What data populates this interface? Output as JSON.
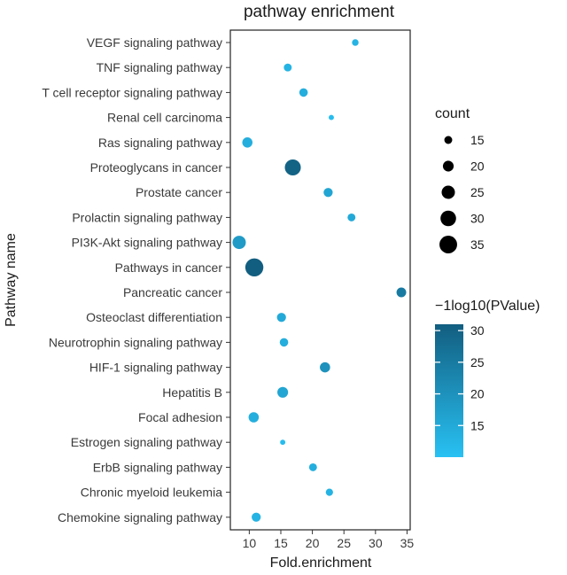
{
  "chart_data": {
    "type": "scatter",
    "title": "pathway enrichment",
    "xlabel": "Fold.enrichment",
    "ylabel": "Pathway name",
    "xlim": [
      7,
      35.5
    ],
    "xticks": [
      10,
      15,
      20,
      25,
      30,
      35
    ],
    "xtick_labels": [
      "10",
      "15",
      "20",
      "25",
      "30",
      "35"
    ],
    "points": [
      {
        "pathway": "VEGF signaling pathway",
        "fold_enrichment": 26.8,
        "count": 13,
        "neglog10_p": 13
      },
      {
        "pathway": "TNF signaling pathway",
        "fold_enrichment": 16.1,
        "count": 15,
        "neglog10_p": 13
      },
      {
        "pathway": "T cell receptor signaling pathway",
        "fold_enrichment": 18.6,
        "count": 16,
        "neglog10_p": 14
      },
      {
        "pathway": "Renal cell carcinoma",
        "fold_enrichment": 23.0,
        "count": 11,
        "neglog10_p": 11
      },
      {
        "pathway": "Ras signaling pathway",
        "fold_enrichment": 9.7,
        "count": 19,
        "neglog10_p": 14
      },
      {
        "pathway": "Proteoglycans in cancer",
        "fold_enrichment": 16.9,
        "count": 31,
        "neglog10_p": 30
      },
      {
        "pathway": "Prostate cancer",
        "fold_enrichment": 22.5,
        "count": 17,
        "neglog10_p": 16
      },
      {
        "pathway": "Prolactin signaling pathway",
        "fold_enrichment": 26.2,
        "count": 15,
        "neglog10_p": 15
      },
      {
        "pathway": "PI3K-Akt signaling pathway",
        "fold_enrichment": 8.4,
        "count": 25,
        "neglog10_p": 18
      },
      {
        "pathway": "Pathways in cancer",
        "fold_enrichment": 10.8,
        "count": 36,
        "neglog10_p": 31
      },
      {
        "pathway": "Pancreatic cancer",
        "fold_enrichment": 34.1,
        "count": 18,
        "neglog10_p": 25
      },
      {
        "pathway": "Osteoclast differentiation",
        "fold_enrichment": 15.1,
        "count": 17,
        "neglog10_p": 15
      },
      {
        "pathway": "Neurotrophin signaling pathway",
        "fold_enrichment": 15.5,
        "count": 16,
        "neglog10_p": 14
      },
      {
        "pathway": "HIF-1 signaling pathway",
        "fold_enrichment": 22.0,
        "count": 19,
        "neglog10_p": 20
      },
      {
        "pathway": "Hepatitis B",
        "fold_enrichment": 15.3,
        "count": 20,
        "neglog10_p": 16
      },
      {
        "pathway": "Focal adhesion",
        "fold_enrichment": 10.7,
        "count": 19,
        "neglog10_p": 14
      },
      {
        "pathway": "Estrogen signaling pathway",
        "fold_enrichment": 15.3,
        "count": 11,
        "neglog10_p": 11
      },
      {
        "pathway": "ErbB signaling pathway",
        "fold_enrichment": 20.1,
        "count": 15,
        "neglog10_p": 14
      },
      {
        "pathway": "Chronic myeloid leukemia",
        "fold_enrichment": 22.7,
        "count": 14,
        "neglog10_p": 13
      },
      {
        "pathway": "Chemokine signaling pathway",
        "fold_enrichment": 11.1,
        "count": 17,
        "neglog10_p": 13
      }
    ],
    "size_legend": {
      "title": "count",
      "values": [
        15,
        20,
        25,
        30,
        35
      ],
      "labels": [
        "15",
        "20",
        "25",
        "30",
        "35"
      ]
    },
    "color_legend": {
      "title": "−1log10(PValue)",
      "range": [
        10,
        31
      ],
      "ticks": [
        15,
        20,
        25,
        30
      ],
      "tick_labels": [
        "15",
        "20",
        "25",
        "30"
      ],
      "color_low": "#28C1F3",
      "color_high": "#125E80"
    }
  }
}
